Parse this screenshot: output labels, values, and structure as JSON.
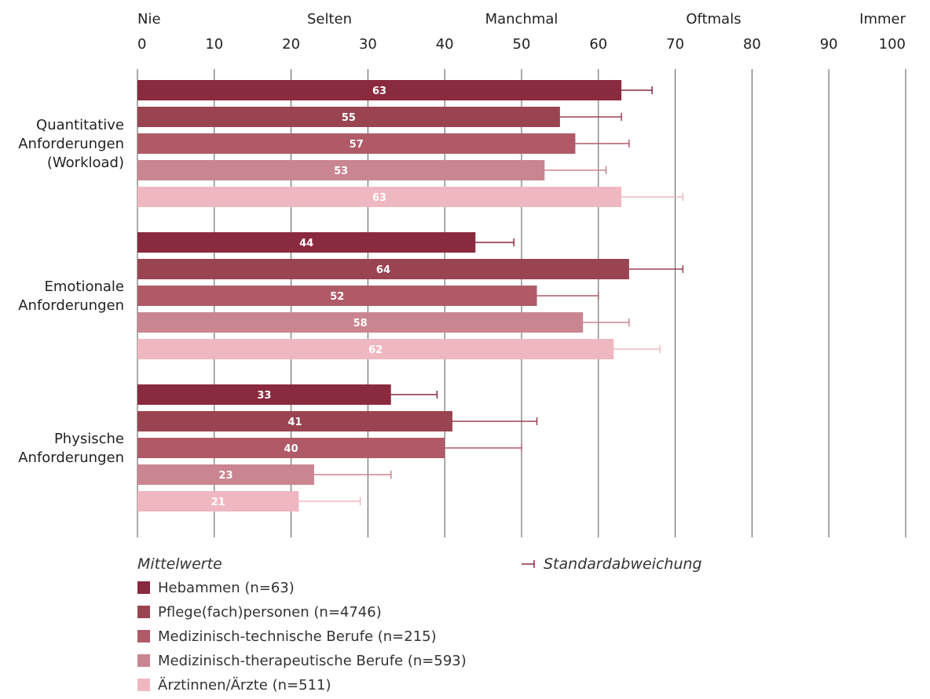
{
  "chart_data": {
    "type": "bar",
    "orientation": "horizontal",
    "scale_labels": [
      "Nie",
      "Selten",
      "Manchmal",
      "Oftmals",
      "Immer"
    ],
    "x_ticks": [
      "0",
      "10",
      "20",
      "30",
      "40",
      "50",
      "60",
      "70",
      "80",
      "90",
      "100"
    ],
    "xlim": [
      0,
      100
    ],
    "grid": true,
    "categories": [
      "Quantitative Anforderungen (Workload)",
      "Emotionale Anforderungen",
      "Physische Anforderungen"
    ],
    "category_lines": [
      [
        "Quantitative",
        "Anforderungen",
        "(Workload)"
      ],
      [
        "Emotionale",
        "Anforderungen"
      ],
      [
        "Physische",
        "Anforderungen"
      ]
    ],
    "series": [
      {
        "name": "Hebammen (n=63)",
        "color": "#8a2a3e",
        "values": [
          63,
          44,
          33
        ],
        "sd_end": [
          67,
          49,
          39
        ]
      },
      {
        "name": "Pflege(fach)personen (n=4746)",
        "color": "#9a4452",
        "values": [
          55,
          64,
          41
        ],
        "sd_end": [
          63,
          71,
          52
        ]
      },
      {
        "name": "Medizinisch-technische Berufe (n=215)",
        "color": "#b05a68",
        "values": [
          57,
          52,
          40
        ],
        "sd_end": [
          64,
          60,
          50
        ]
      },
      {
        "name": "Medizinisch-therapeutische Berufe (n=593)",
        "color": "#c98690",
        "values": [
          53,
          58,
          23
        ],
        "sd_end": [
          61,
          64,
          33
        ]
      },
      {
        "name": "Ärztinnen/Ärzte (n=511)",
        "color": "#efb8c1",
        "values": [
          63,
          62,
          21
        ],
        "sd_end": [
          71,
          68,
          29
        ]
      }
    ],
    "legend_title": "Mittelwerte",
    "sd_label": "Standardabweichung"
  }
}
